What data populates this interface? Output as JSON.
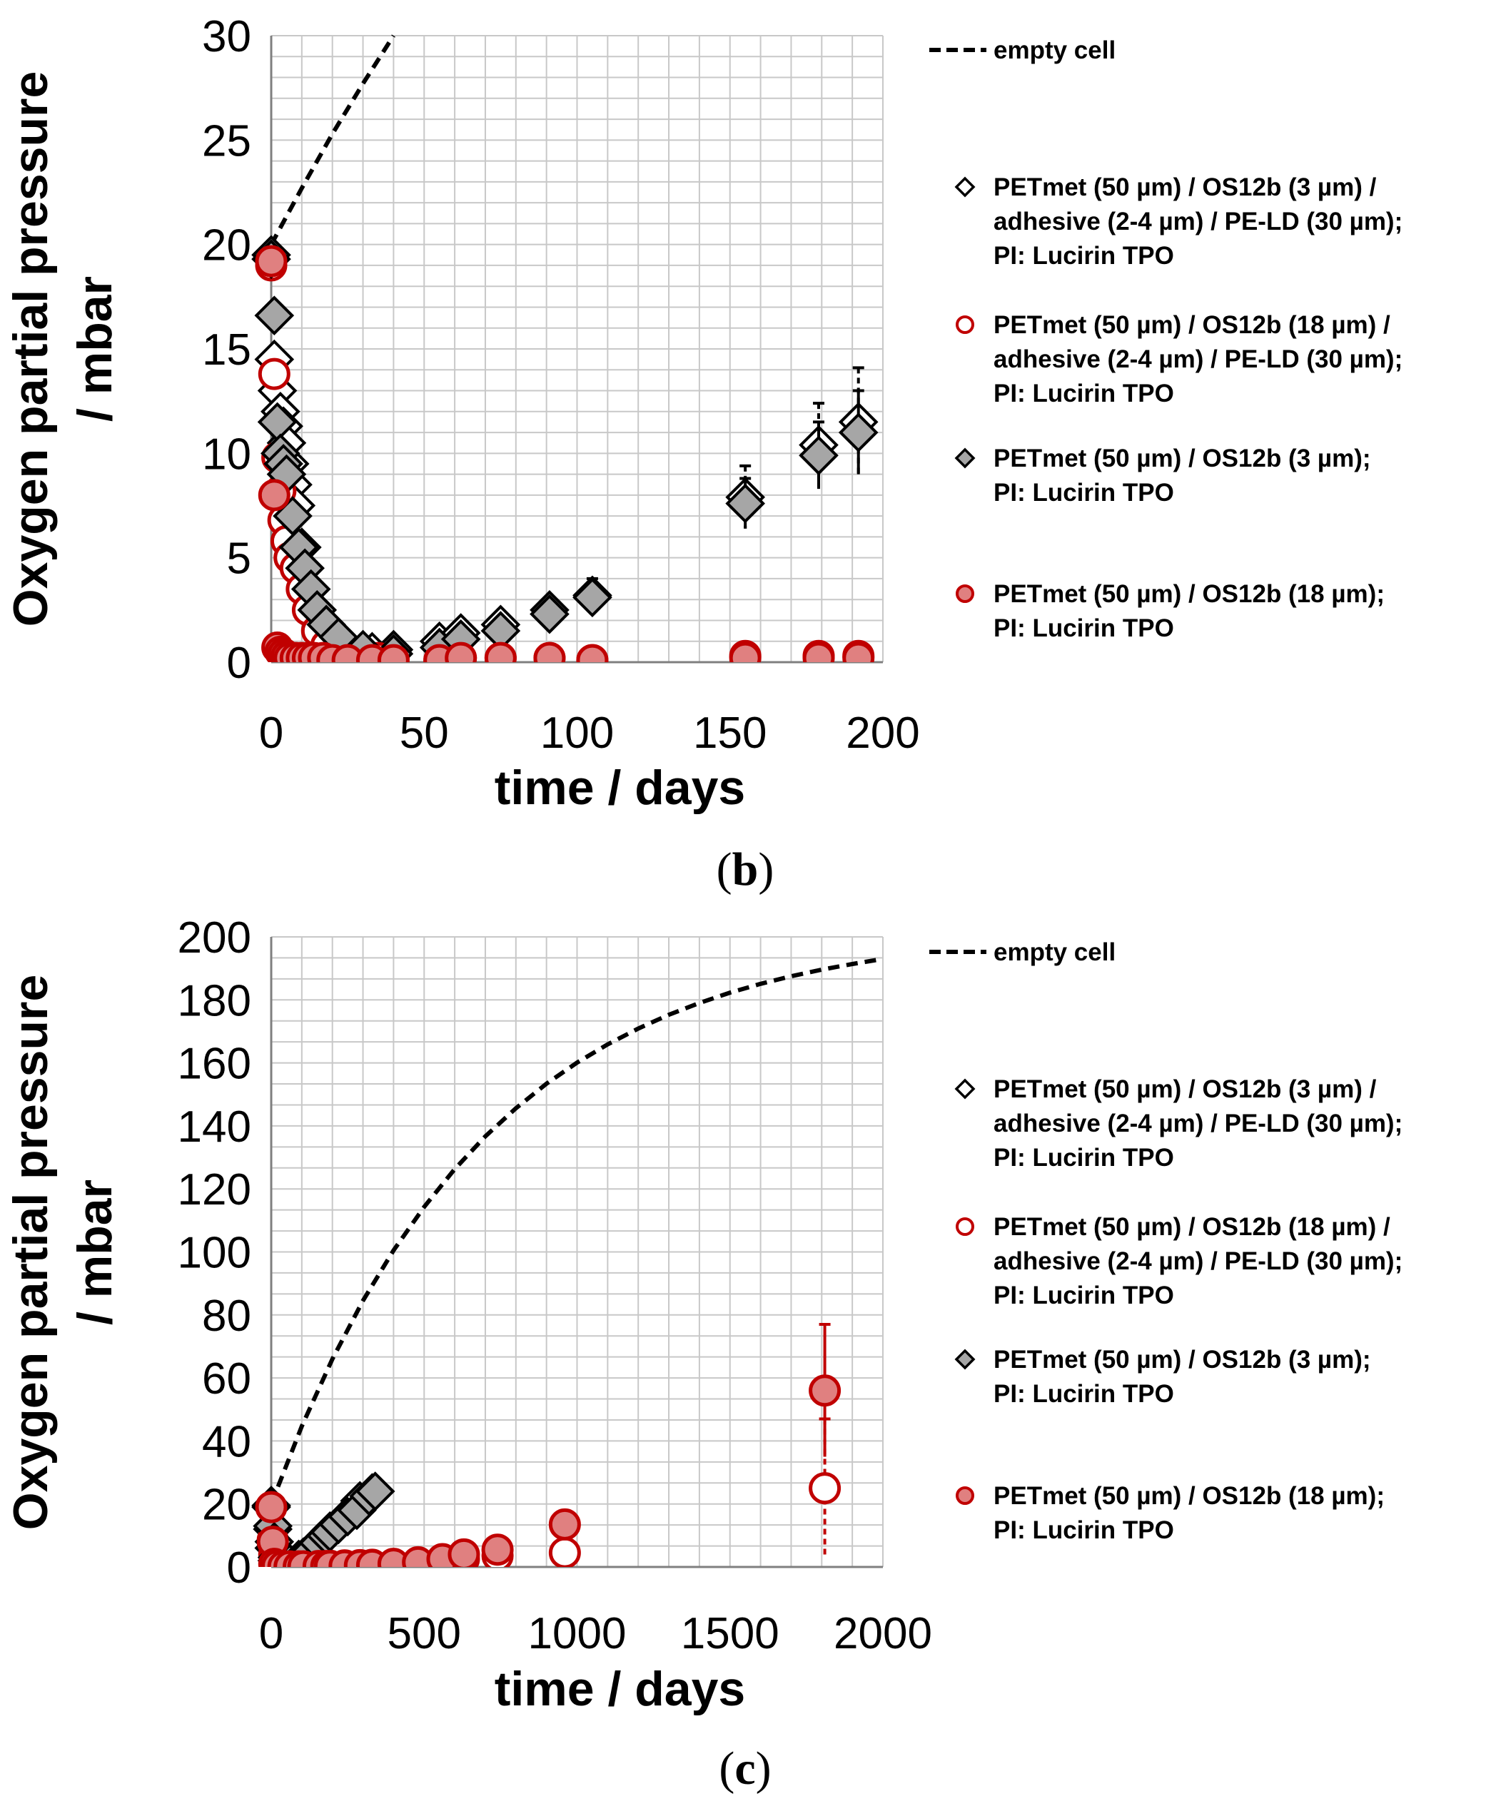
{
  "chart_data": [
    {
      "type": "scatter",
      "panel_label": "b",
      "title": "",
      "xlabel": "time / days",
      "ylabel": [
        "Oxygen partial pressure",
        "/ mbar"
      ],
      "xlim": [
        0,
        200
      ],
      "ylim": [
        0,
        30
      ],
      "xticks": [
        0,
        50,
        100,
        150,
        200
      ],
      "xtick_labels": [
        "0",
        "50",
        "100",
        "150",
        "200"
      ],
      "yticks": [
        0,
        5,
        10,
        15,
        20,
        25,
        30
      ],
      "ytick_labels": [
        "0",
        "5",
        "10",
        "15",
        "20",
        "25",
        "30"
      ],
      "grid": true,
      "legend_position": "right",
      "series": [
        {
          "key": "empty",
          "name": "empty cell",
          "legend_lines": [
            "empty cell"
          ],
          "kind": "line",
          "style": "dashed",
          "color": "#000000",
          "x": [
            0,
            10,
            20,
            30,
            40
          ],
          "y": [
            20,
            22.7,
            25.3,
            27.7,
            30
          ]
        },
        {
          "key": "s1",
          "legend_lines": [
            "PETmet (50 µm) / OS12b (3 µm) /",
            "adhesive (2-4 µm) / PE-LD (30 µm);",
            "PI: Lucirin TPO"
          ],
          "kind": "marker",
          "marker": "diamond",
          "fill": "#ffffff",
          "stroke": "#000000",
          "errcolor": "#000000",
          "errstyle": "dashed",
          "x": [
            0,
            1,
            2,
            3,
            4,
            5,
            6,
            7,
            8,
            10,
            12,
            14,
            17,
            20,
            25,
            33,
            40,
            55,
            62,
            75,
            91,
            105,
            155,
            179,
            192
          ],
          "y": [
            19.5,
            14.5,
            13,
            12,
            11.3,
            10.5,
            9.5,
            8.5,
            7.5,
            5.5,
            3.5,
            2.5,
            1.8,
            1.2,
            0.6,
            0.5,
            0.6,
            1.0,
            1.4,
            1.8,
            2.5,
            3.2,
            7.9,
            10.4,
            11.5
          ],
          "err": [
            0.4,
            0.5,
            0.5,
            0.6,
            0.6,
            0.7,
            0.7,
            0.7,
            0.7,
            0.6,
            0.5,
            0.4,
            0.3,
            0.3,
            0.2,
            0.2,
            0.2,
            0.2,
            0.3,
            0.3,
            0.3,
            0.8,
            1.5,
            2.0,
            2.6
          ]
        },
        {
          "key": "s2",
          "legend_lines": [
            "PETmet (50 µm) / OS12b (18 µm) /",
            "adhesive (2-4 µm) / PE-LD (30 µm);",
            "PI: Lucirin TPO"
          ],
          "kind": "marker",
          "marker": "circle",
          "fill": "#ffffff",
          "stroke": "#c00000",
          "errcolor": "#c00000",
          "errstyle": "dashed",
          "x": [
            0,
            1,
            2,
            3,
            4,
            5,
            6,
            8,
            10,
            12,
            15,
            18,
            22,
            28,
            35,
            40,
            55,
            62,
            75,
            91,
            105,
            155,
            179,
            192
          ],
          "y": [
            19,
            13.8,
            9.8,
            8.2,
            6.8,
            5.8,
            5.0,
            4.5,
            3.5,
            2.5,
            1.5,
            0.8,
            0.4,
            0.2,
            0.2,
            0.2,
            0.1,
            0.2,
            0.2,
            0.2,
            0.1,
            0.3,
            0.3,
            0.3
          ],
          "err": [
            0.3,
            0.4,
            0.5,
            0.6,
            0.8,
            1.0,
            1.2,
            1.2,
            1.0,
            0.8,
            0.5,
            0.3,
            0.2,
            0.1,
            0.1,
            0.1,
            0.1,
            0.1,
            0.1,
            0.1,
            0.1,
            0.1,
            0.1,
            0.1
          ]
        },
        {
          "key": "s3",
          "legend_lines": [
            "PETmet (50 µm) / OS12b (3 µm);",
            "PI: Lucirin TPO"
          ],
          "kind": "marker",
          "marker": "diamond",
          "fill": "#a6a6a6",
          "stroke": "#000000",
          "errcolor": "#000000",
          "errstyle": "solid",
          "x": [
            0,
            1,
            2,
            3,
            4,
            5,
            7,
            9,
            11,
            13,
            15,
            18,
            22,
            30,
            40,
            55,
            62,
            75,
            91,
            105,
            155,
            179,
            192
          ],
          "y": [
            19.3,
            16.6,
            11.5,
            10.0,
            9.5,
            9.0,
            7.0,
            5.5,
            4.5,
            3.5,
            2.5,
            1.8,
            1.2,
            0.6,
            0.4,
            0.7,
            1.1,
            1.5,
            2.3,
            3.1,
            7.6,
            9.9,
            11.0
          ],
          "err": [
            0.3,
            0.4,
            0.5,
            0.5,
            0.5,
            0.5,
            0.5,
            0.5,
            0.4,
            0.4,
            0.3,
            0.3,
            0.2,
            0.2,
            0.2,
            0.2,
            0.2,
            0.3,
            0.3,
            0.4,
            1.2,
            1.6,
            2.0
          ]
        },
        {
          "key": "s4",
          "legend_lines": [
            "PETmet (50 µm) / OS12b (18 µm);",
            "PI: Lucirin TPO"
          ],
          "kind": "marker",
          "marker": "circle",
          "fill": "#e08080",
          "stroke": "#c00000",
          "errcolor": "#c00000",
          "errstyle": "solid",
          "x": [
            0,
            1,
            2,
            3,
            4,
            5,
            6,
            8,
            10,
            12,
            14,
            17,
            20,
            25,
            33,
            40,
            55,
            62,
            75,
            91,
            105,
            155,
            179,
            192
          ],
          "y": [
            19.2,
            8.0,
            0.7,
            0.5,
            0.4,
            0.3,
            0.2,
            0.2,
            0.2,
            0.2,
            0.2,
            0.2,
            0.1,
            0.1,
            0.1,
            0.1,
            0.1,
            0.2,
            0.2,
            0.2,
            0.1,
            0.2,
            0.2,
            0.2
          ],
          "err": [
            0.2,
            0.3,
            0.2,
            0.2,
            0.1,
            0.1,
            0.1,
            0.1,
            0.1,
            0.1,
            0.1,
            0.1,
            0.1,
            0.1,
            0.1,
            0.1,
            0.1,
            0.1,
            0.1,
            0.1,
            0.1,
            0.1,
            0.1,
            0.1
          ]
        }
      ]
    },
    {
      "type": "scatter",
      "panel_label": "c",
      "title": "",
      "xlabel": "time / days",
      "ylabel": [
        "Oxygen partial pressure",
        "/ mbar"
      ],
      "xlim": [
        0,
        2000
      ],
      "ylim": [
        0,
        200
      ],
      "xticks": [
        0,
        500,
        1000,
        1500,
        2000
      ],
      "xtick_labels": [
        "0",
        "500",
        "1000",
        "1500",
        "2000"
      ],
      "yticks": [
        0,
        20,
        40,
        60,
        80,
        100,
        120,
        140,
        160,
        180,
        200
      ],
      "ytick_labels": [
        "0",
        "20",
        "40",
        "60",
        "80",
        "100",
        "120",
        "140",
        "160",
        "180",
        "200"
      ],
      "grid": true,
      "legend_position": "right",
      "series": [
        {
          "key": "empty",
          "name": "empty cell",
          "legend_lines": [
            "empty cell"
          ],
          "kind": "line",
          "style": "dashed",
          "color": "#000000",
          "x": [
            0,
            100,
            200,
            300,
            400,
            500,
            600,
            700,
            800,
            900,
            1000,
            1100,
            1200,
            1300,
            1400,
            1500,
            1600,
            1700,
            1800,
            1900,
            2000
          ],
          "y": [
            20,
            44.7,
            66.0,
            84.5,
            100.5,
            114.3,
            126.3,
            136.7,
            145.6,
            153.4,
            160.1,
            165.9,
            170.9,
            175.3,
            179.0,
            182.3,
            185.1,
            187.5,
            189.6,
            191.4,
            193.0
          ]
        },
        {
          "key": "s1",
          "legend_lines": [
            "PETmet (50 µm) / OS12b (3 µm) /",
            "adhesive (2-4 µm) / PE-LD (30 µm);",
            "PI: Lucirin TPO"
          ],
          "kind": "marker",
          "marker": "diamond",
          "fill": "#ffffff",
          "stroke": "#000000",
          "errcolor": "#000000",
          "errstyle": "dashed",
          "x": [
            0,
            5,
            10,
            20,
            40,
            60,
            90,
            105,
            155,
            180,
            192,
            240,
            290,
            330
          ],
          "y": [
            19.5,
            12,
            6,
            2,
            0.6,
            1.2,
            2.4,
            3.1,
            7.8,
            10.2,
            11.4,
            15.5,
            21,
            23.5
          ],
          "err": [
            0.5,
            0.6,
            0.6,
            0.4,
            0.3,
            0.3,
            0.4,
            0.8,
            1.5,
            2.0,
            2.6,
            1.5,
            2.0,
            2.5
          ]
        },
        {
          "key": "s2",
          "legend_lines": [
            "PETmet (50 µm) / OS12b (18 µm) /",
            "adhesive (2-4 µm) / PE-LD (30 µm);",
            "PI: Lucirin TPO"
          ],
          "kind": "marker",
          "marker": "circle",
          "fill": "#ffffff",
          "stroke": "#c00000",
          "errcolor": "#c00000",
          "errstyle": "dashed",
          "x": [
            0,
            5,
            10,
            20,
            40,
            60,
            90,
            105,
            155,
            180,
            192,
            240,
            290,
            330,
            400,
            480,
            560,
            630,
            740,
            960,
            1810
          ],
          "y": [
            19,
            8.5,
            4,
            1,
            0.3,
            0.3,
            0.3,
            0.3,
            0.4,
            0.4,
            0.4,
            0.5,
            0.6,
            0.7,
            0.8,
            1.0,
            1.5,
            2.5,
            3.5,
            4.5,
            25
          ],
          "err": [
            0.5,
            0.8,
            0.5,
            0.3,
            0.2,
            0.2,
            0.2,
            0.2,
            0.2,
            0.2,
            0.2,
            0.2,
            0.3,
            0.3,
            0.3,
            0.5,
            0.8,
            1.0,
            1.2,
            1.5,
            22
          ]
        },
        {
          "key": "s3",
          "legend_lines": [
            "PETmet (50 µm) / OS12b (3 µm);",
            "PI: Lucirin TPO"
          ],
          "kind": "marker",
          "marker": "diamond",
          "fill": "#a6a6a6",
          "stroke": "#000000",
          "errcolor": "#000000",
          "errstyle": "solid",
          "x": [
            0,
            5,
            10,
            20,
            40,
            60,
            90,
            105,
            130,
            155,
            180,
            192,
            220,
            250,
            280,
            320,
            340
          ],
          "y": [
            19,
            13,
            8,
            3,
            0.6,
            1.1,
            2.3,
            3.1,
            5,
            7.6,
            9.9,
            11,
            13.5,
            16,
            18,
            22.5,
            24
          ],
          "err": [
            0.5,
            0.6,
            0.6,
            0.4,
            0.3,
            0.3,
            0.4,
            0.8,
            1.0,
            1.2,
            1.6,
            2.0,
            1.5,
            1.5,
            1.8,
            2.0,
            2.5
          ]
        },
        {
          "key": "s4",
          "legend_lines": [
            "PETmet (50 µm) / OS12b (18 µm);",
            "PI: Lucirin TPO"
          ],
          "kind": "marker",
          "marker": "circle",
          "fill": "#e08080",
          "stroke": "#c00000",
          "errcolor": "#c00000",
          "errstyle": "solid",
          "x": [
            0,
            5,
            10,
            20,
            40,
            60,
            90,
            105,
            155,
            180,
            192,
            240,
            290,
            330,
            400,
            480,
            560,
            630,
            740,
            960,
            1810
          ],
          "y": [
            19,
            8,
            1,
            0.4,
            0.2,
            0.2,
            0.2,
            0.2,
            0.3,
            0.3,
            0.3,
            0.4,
            0.5,
            0.6,
            1.0,
            1.5,
            2.5,
            4.0,
            5.5,
            13.5,
            56
          ],
          "err": [
            0.3,
            0.4,
            0.3,
            0.2,
            0.2,
            0.2,
            0.2,
            0.2,
            0.2,
            0.2,
            0.2,
            0.2,
            0.3,
            0.3,
            0.4,
            0.5,
            0.8,
            1.2,
            1.8,
            3.0,
            21
          ]
        }
      ]
    }
  ]
}
